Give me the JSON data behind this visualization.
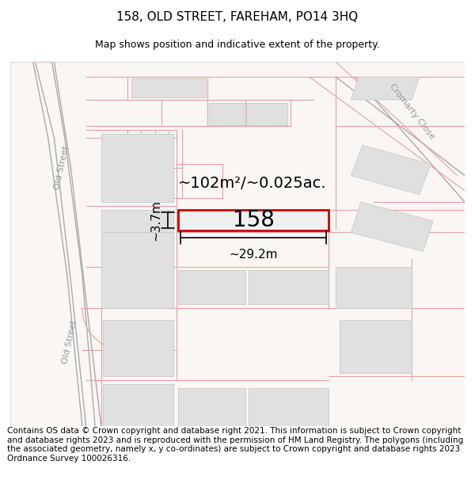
{
  "title": "158, OLD STREET, FAREHAM, PO14 3HQ",
  "subtitle": "Map shows position and indicative extent of the property.",
  "footer": "Contains OS data © Crown copyright and database right 2021. This information is subject to Crown copyright and database rights 2023 and is reproduced with the permission of HM Land Registry. The polygons (including the associated geometry, namely x, y co-ordinates) are subject to Crown copyright and database rights 2023 Ordnance Survey 100026316.",
  "background_color": "#ffffff",
  "map_bg": "#f9f6f4",
  "road_line_color": "#e8a0a0",
  "road_fill": "#f9f6f4",
  "building_fill": "#e0e0e0",
  "building_edge": "#c8c8c8",
  "street_line_color": "#aaaaaa",
  "highlight_fill": "#f0f0f0",
  "highlight_edge": "#cc0000",
  "highlight_label": "158",
  "area_text": "~102m²/~0.025ac.",
  "width_text": "~29.2m",
  "height_text": "~3.7m",
  "title_fontsize": 11,
  "subtitle_fontsize": 9,
  "footer_fontsize": 7.5,
  "label_fontsize": 20,
  "dim_fontsize": 11
}
